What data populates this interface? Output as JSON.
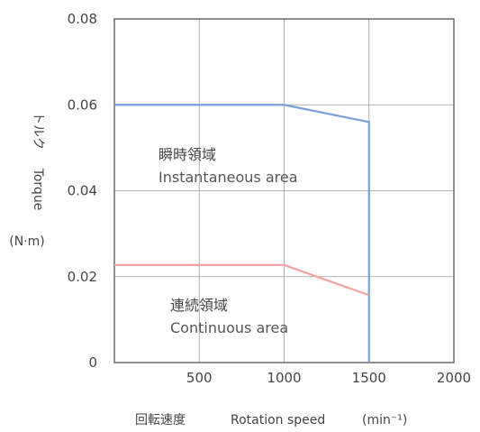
{
  "chart_data": {
    "type": "line",
    "x": [
      0,
      1000,
      1500,
      1500
    ],
    "series": [
      {
        "color": "#7aa0d8",
        "x": [
          0,
          1000,
          1500,
          1500
        ],
        "values": [
          0.06,
          0.06,
          0.056,
          0
        ]
      },
      {
        "color": "#f4a3a3",
        "x": [
          0,
          1000,
          1500
        ],
        "values": [
          0.0227,
          0.0227,
          0.0157
        ]
      }
    ],
    "xlim": [
      0,
      2000
    ],
    "ylim": [
      0,
      0.08
    ],
    "xticks": [
      "",
      "500",
      "1000",
      "1500",
      "2000"
    ],
    "yticks": [
      "0",
      "0.02",
      "0.04",
      "0.06",
      "0.08"
    ],
    "xlabel_jp": "回転速度",
    "xlabel_en": "Rotation speed",
    "xlabel_unit": "(min⁻¹)",
    "ylabel_jp": "トルク",
    "ylabel_en": "Torque",
    "ylabel_unit": "(N·m)",
    "grid": true,
    "annotations": {
      "instant_jp": "瞬時領域",
      "instant_en": "Instantaneous area",
      "continuous_jp": "連続領域",
      "continuous_en": "Continuous area"
    }
  }
}
